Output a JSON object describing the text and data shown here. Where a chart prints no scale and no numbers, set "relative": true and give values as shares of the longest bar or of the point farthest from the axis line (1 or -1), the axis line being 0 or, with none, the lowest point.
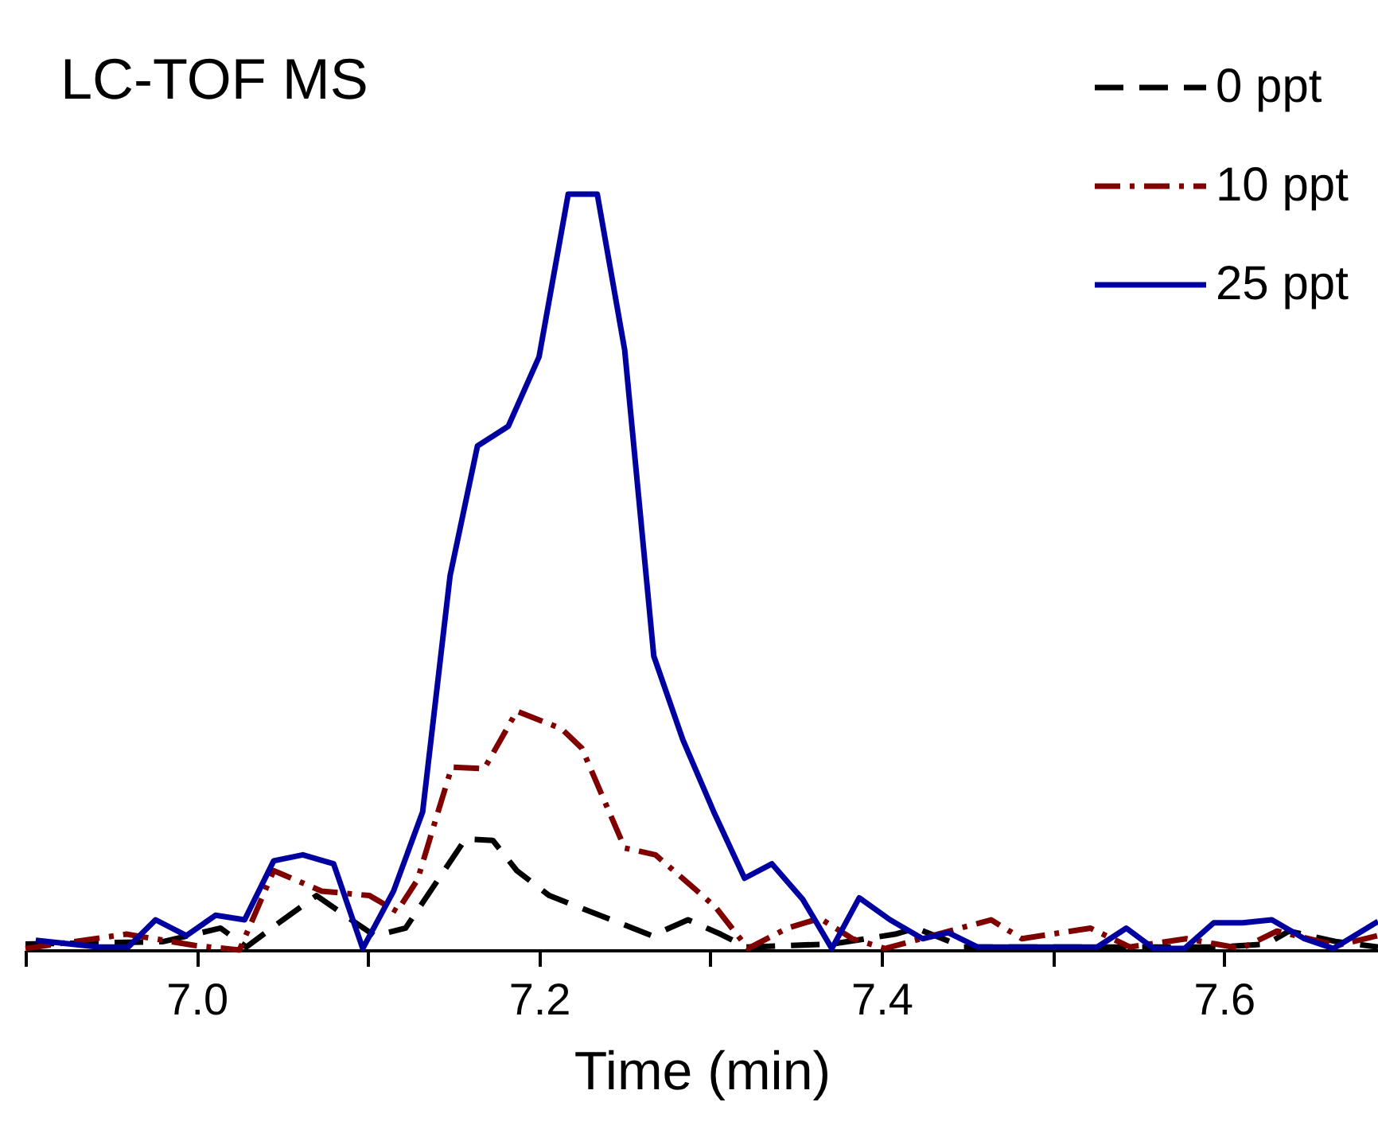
{
  "chart_data": {
    "type": "line",
    "title": "LC-TOF MS",
    "xlabel": "Time (min)",
    "relative": true,
    "grid": false,
    "legend": "top right",
    "xlim": [
      6.9,
      7.69
    ],
    "xticks": [
      {
        "value": 6.9,
        "label": null
      },
      {
        "value": 7.0,
        "label": "7.0"
      },
      {
        "value": 7.1,
        "label": null
      },
      {
        "value": 7.2,
        "label": "7.2"
      },
      {
        "value": 7.3,
        "label": null
      },
      {
        "value": 7.4,
        "label": "7.4"
      },
      {
        "value": 7.5,
        "label": null
      },
      {
        "value": 7.6,
        "label": "7.6"
      }
    ],
    "series": [
      {
        "name": "0 ppt",
        "color": "#000000",
        "line_style": "dashed",
        "x": [
          6.9,
          6.98,
          7.014,
          7.029,
          7.048,
          7.07,
          7.089,
          7.104,
          7.122,
          7.157,
          7.173,
          7.187,
          7.206,
          7.266,
          7.287,
          7.306,
          7.321,
          7.371,
          7.408,
          7.42,
          7.448,
          7.597,
          7.625,
          7.638,
          7.666,
          7.69
        ],
        "values": [
          0.008,
          0.011,
          0.029,
          0.004,
          0.036,
          0.072,
          0.042,
          0.019,
          0.029,
          0.147,
          0.145,
          0.105,
          0.072,
          0.019,
          0.04,
          0.021,
          0.004,
          0.008,
          0.021,
          0.029,
          0.004,
          0.004,
          0.008,
          0.025,
          0.011,
          0.004
        ]
      },
      {
        "name": "10 ppt",
        "color": "#800000",
        "line_style": "dashdot",
        "x": [
          6.9,
          6.959,
          6.999,
          7.025,
          7.045,
          7.073,
          7.101,
          7.117,
          7.129,
          7.141,
          7.149,
          7.168,
          7.187,
          7.213,
          7.225,
          7.25,
          7.268,
          7.303,
          7.322,
          7.345,
          7.364,
          7.383,
          7.402,
          7.464,
          7.482,
          7.522,
          7.545,
          7.578,
          7.61,
          7.631,
          7.666,
          7.69
        ],
        "values": [
          0.002,
          0.021,
          0.006,
          0,
          0.105,
          0.078,
          0.072,
          0.051,
          0.093,
          0.183,
          0.242,
          0.24,
          0.316,
          0.293,
          0.267,
          0.135,
          0.126,
          0.057,
          0.002,
          0.029,
          0.042,
          0.015,
          0.002,
          0.04,
          0.015,
          0.029,
          0.004,
          0.015,
          0.002,
          0.025,
          0.006,
          0.019
        ]
      },
      {
        "name": "25 ppt",
        "color": "#0000a0",
        "line_style": "solid",
        "x": [
          6.906,
          6.943,
          6.96,
          6.976,
          6.994,
          7.011,
          7.028,
          7.045,
          7.062,
          7.08,
          7.097,
          7.115,
          7.132,
          7.148,
          7.164,
          7.182,
          7.2,
          7.217,
          7.234,
          7.25,
          7.267,
          7.284,
          7.302,
          7.32,
          7.336,
          7.354,
          7.371,
          7.387,
          7.405,
          7.424,
          7.439,
          7.456,
          7.526,
          7.543,
          7.559,
          7.577,
          7.594,
          7.611,
          7.628,
          7.647,
          7.664,
          7.69
        ],
        "values": [
          0.013,
          0.004,
          0.004,
          0.04,
          0.019,
          0.046,
          0.04,
          0.118,
          0.126,
          0.114,
          0.002,
          0.078,
          0.183,
          0.495,
          0.667,
          0.693,
          0.785,
          1,
          1,
          0.794,
          0.389,
          0.278,
          0.183,
          0.095,
          0.114,
          0.067,
          0.002,
          0.069,
          0.04,
          0.015,
          0.023,
          0.004,
          0.004,
          0.029,
          0.002,
          0.002,
          0.036,
          0.036,
          0.04,
          0.015,
          0.002,
          0.038
        ]
      }
    ]
  }
}
